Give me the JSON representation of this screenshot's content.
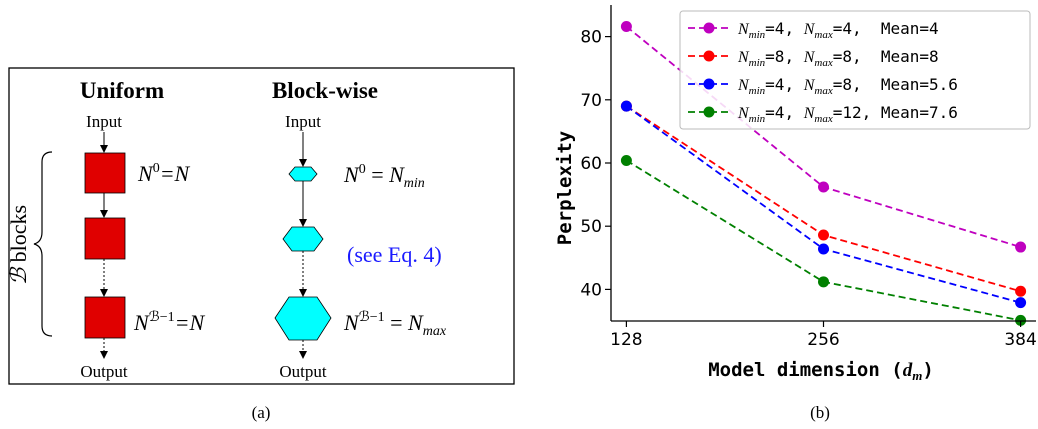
{
  "panel_a": {
    "caption": "(a)",
    "uniform": {
      "title": "Uniform",
      "input_label": "Input",
      "output_label": "Output",
      "first_label": {
        "base": "N",
        "sup": "0",
        "rest": "=N"
      },
      "last_label": {
        "base": "N",
        "sup": "ℬ−1",
        "rest": "=N"
      }
    },
    "blockwise": {
      "title": "Block-wise",
      "input_label": "Input",
      "output_label": "Output",
      "first_label": {
        "base": "N",
        "sup": "0",
        "eq": " = ",
        "rhs": "N",
        "sub": "min"
      },
      "middle_label": "(see Eq. 4)",
      "last_label": {
        "base": "N",
        "sup": "ℬ−1",
        "eq": " = ",
        "rhs": "N",
        "sub": "max"
      }
    },
    "blocks_label": {
      "script": "ℬ",
      "text": " blocks"
    },
    "colors": {
      "uniform_block": "#e00000",
      "blockwise_block": "#00ffff",
      "see_eq": "#1a1aff"
    }
  },
  "chart_data": {
    "type": "line",
    "caption": "(b)",
    "xlabel": "Model dimension (dₘ)",
    "xlabel_parts": {
      "text": "Model dimension (",
      "var": "d",
      "sub": "m",
      "close": ")"
    },
    "ylabel": "Perplexity",
    "x": [
      128,
      256,
      384
    ],
    "xticks": [
      "128",
      "256",
      "384"
    ],
    "yticks": [
      40,
      50,
      60,
      70,
      80
    ],
    "ylim": [
      35,
      85
    ],
    "xlim": [
      118,
      394
    ],
    "legend_position": "top-right",
    "grid": false,
    "series": [
      {
        "name": "N_min=4, N_max=4, Mean=4",
        "min": "4",
        "max": "4",
        "mean": "4",
        "color": "#bf00bf",
        "values": [
          81.6,
          56.2,
          46.7
        ]
      },
      {
        "name": "N_min=8, N_max=8, Mean=8",
        "min": "8",
        "max": "8",
        "mean": "8",
        "color": "#ff0000",
        "values": [
          69.0,
          48.6,
          39.7
        ]
      },
      {
        "name": "N_min=4, N_max=8, Mean=5.6",
        "min": "4",
        "max": "8",
        "mean": "5.6",
        "color": "#0000ff",
        "values": [
          69.0,
          46.4,
          37.9
        ]
      },
      {
        "name": "N_min=4, N_max=12, Mean=7.6",
        "min": "4",
        "max": "12",
        "mean": "7.6",
        "color": "#008000",
        "values": [
          60.4,
          41.2,
          35.1
        ]
      }
    ]
  }
}
